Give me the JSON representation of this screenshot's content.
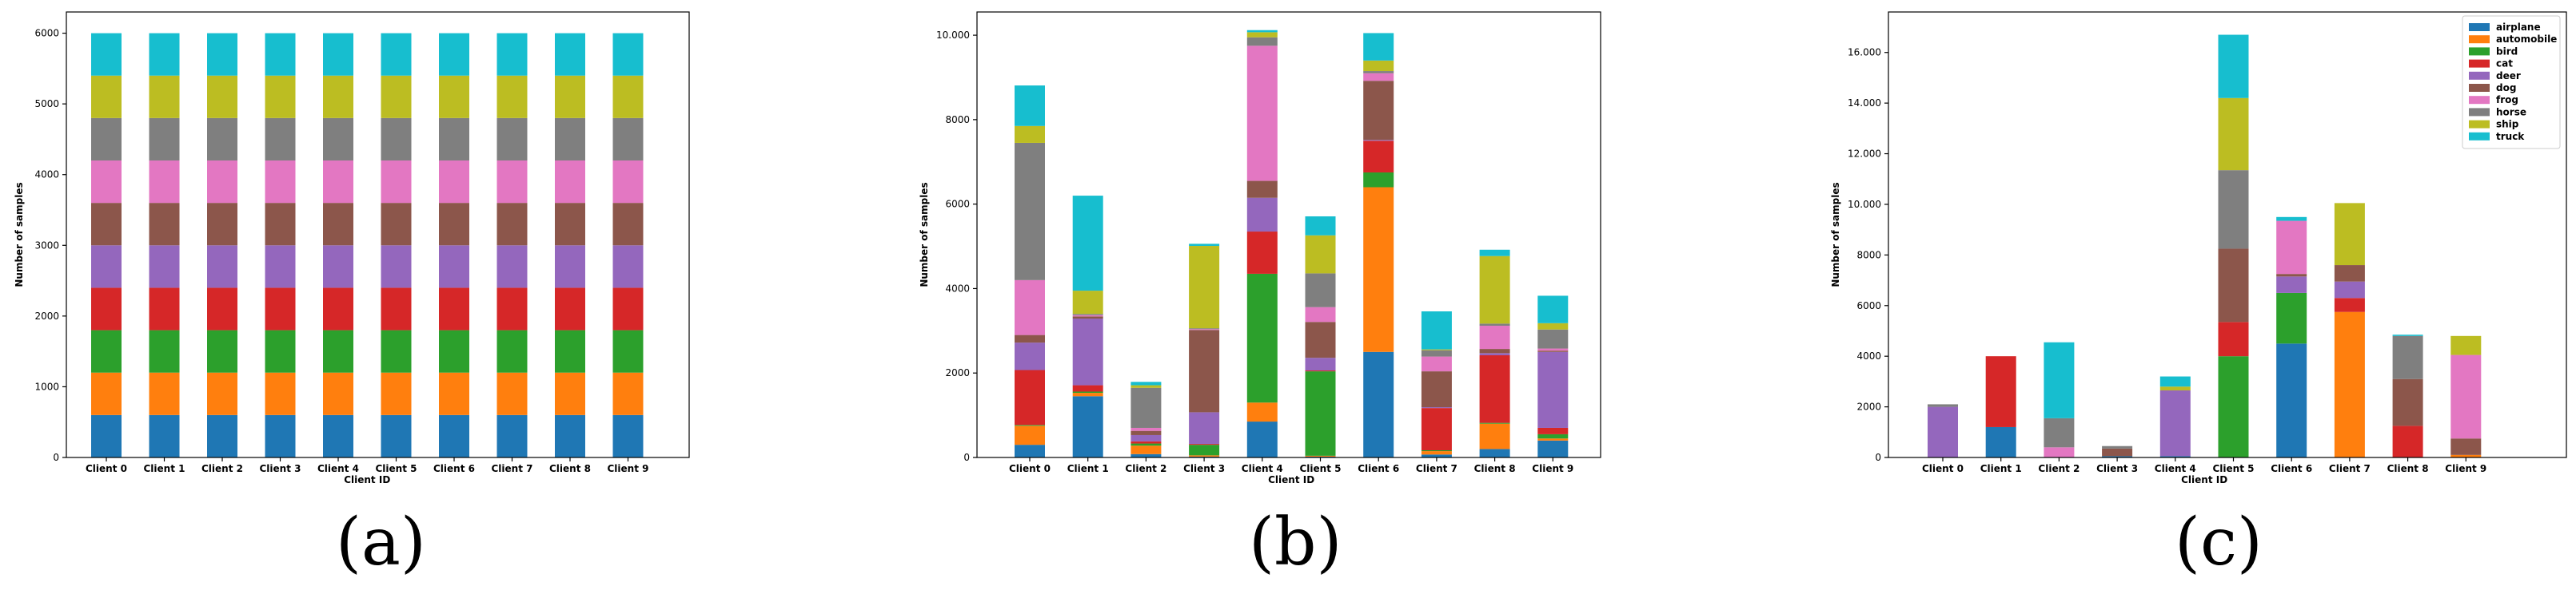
{
  "colors": {
    "airplane": "#1f77b4",
    "automobile": "#ff7f0e",
    "bird": "#2ca02c",
    "cat": "#d62728",
    "deer": "#9467bd",
    "dog": "#8c564b",
    "frog": "#e377c2",
    "horse": "#7f7f7f",
    "ship": "#bcbd22",
    "truck": "#17becf"
  },
  "chart_data": [
    {
      "type": "bar",
      "stacked": true,
      "panel_label": "(a)",
      "title": "",
      "xlabel": "Client ID",
      "ylabel": "Number of samples",
      "categories": [
        "Client 0",
        "Client 1",
        "Client 2",
        "Client 3",
        "Client 4",
        "Client 5",
        "Client 6",
        "Client 7",
        "Client 8",
        "Client 9"
      ],
      "ylim": [
        0,
        6300
      ],
      "yticks": [
        0,
        1000,
        2000,
        3000,
        4000,
        5000,
        6000
      ],
      "ytick_labels": [
        "0",
        "1000",
        "2000",
        "3000",
        "4000",
        "5000",
        "6000"
      ],
      "series": [
        {
          "name": "airplane",
          "values": [
            600,
            600,
            600,
            600,
            600,
            600,
            600,
            600,
            600,
            600
          ]
        },
        {
          "name": "automobile",
          "values": [
            600,
            600,
            600,
            600,
            600,
            600,
            600,
            600,
            600,
            600
          ]
        },
        {
          "name": "bird",
          "values": [
            600,
            600,
            600,
            600,
            600,
            600,
            600,
            600,
            600,
            600
          ]
        },
        {
          "name": "cat",
          "values": [
            600,
            600,
            600,
            600,
            600,
            600,
            600,
            600,
            600,
            600
          ]
        },
        {
          "name": "deer",
          "values": [
            600,
            600,
            600,
            600,
            600,
            600,
            600,
            600,
            600,
            600
          ]
        },
        {
          "name": "dog",
          "values": [
            600,
            600,
            600,
            600,
            600,
            600,
            600,
            600,
            600,
            600
          ]
        },
        {
          "name": "frog",
          "values": [
            600,
            600,
            600,
            600,
            600,
            600,
            600,
            600,
            600,
            600
          ]
        },
        {
          "name": "horse",
          "values": [
            600,
            600,
            600,
            600,
            600,
            600,
            600,
            600,
            600,
            600
          ]
        },
        {
          "name": "ship",
          "values": [
            600,
            600,
            600,
            600,
            600,
            600,
            600,
            600,
            600,
            600
          ]
        },
        {
          "name": "truck",
          "values": [
            600,
            600,
            600,
            600,
            600,
            600,
            600,
            600,
            600,
            600
          ]
        }
      ]
    },
    {
      "type": "bar",
      "stacked": true,
      "panel_label": "(b)",
      "title": "",
      "xlabel": "Client ID",
      "ylabel": "Number of samples",
      "categories": [
        "Client 0",
        "Client 1",
        "Client 2",
        "Client 3",
        "Client 4",
        "Client 5",
        "Client 6",
        "Client 7",
        "Client 8",
        "Client 9"
      ],
      "ylim": [
        0,
        10550
      ],
      "yticks": [
        0,
        2000,
        4000,
        6000,
        8000,
        10000
      ],
      "ytick_labels": [
        "0",
        "2000",
        "4000",
        "6000",
        "8000",
        "10.000"
      ],
      "series": [
        {
          "name": "airplane",
          "values": [
            300,
            1450,
            80,
            20,
            850,
            20,
            2500,
            70,
            200,
            400
          ]
        },
        {
          "name": "automobile",
          "values": [
            450,
            80,
            200,
            30,
            450,
            20,
            3900,
            80,
            600,
            50
          ]
        },
        {
          "name": "bird",
          "values": [
            20,
            30,
            50,
            250,
            3050,
            2000,
            350,
            20,
            20,
            100
          ]
        },
        {
          "name": "cat",
          "values": [
            1300,
            150,
            50,
            20,
            1000,
            20,
            750,
            1000,
            1600,
            150
          ]
        },
        {
          "name": "deer",
          "values": [
            650,
            1580,
            150,
            750,
            800,
            300,
            20,
            20,
            50,
            1800
          ]
        },
        {
          "name": "dog",
          "values": [
            180,
            50,
            100,
            1950,
            400,
            850,
            1400,
            850,
            100,
            30
          ]
        },
        {
          "name": "frog",
          "values": [
            1300,
            30,
            70,
            20,
            3200,
            350,
            180,
            350,
            550,
            50
          ]
        },
        {
          "name": "horse",
          "values": [
            3250,
            30,
            950,
            20,
            200,
            800,
            50,
            150,
            50,
            450
          ]
        },
        {
          "name": "ship",
          "values": [
            400,
            550,
            60,
            1950,
            120,
            900,
            250,
            20,
            1600,
            150
          ]
        },
        {
          "name": "truck",
          "values": [
            960,
            2250,
            80,
            50,
            50,
            450,
            650,
            900,
            150,
            650
          ]
        }
      ]
    },
    {
      "type": "bar",
      "stacked": true,
      "panel_label": "(c)",
      "title": "",
      "xlabel": "Client ID",
      "ylabel": "Number of samples",
      "categories": [
        "Client 0",
        "Client 1",
        "Client 2",
        "Client 3",
        "Client 4",
        "Client 5",
        "Client 6",
        "Client 7",
        "Client 8",
        "Client 9"
      ],
      "ylim": [
        0,
        17600
      ],
      "yticks": [
        0,
        2000,
        4000,
        6000,
        8000,
        10000,
        12000,
        14000,
        16000
      ],
      "ytick_labels": [
        "0",
        "2000",
        "4000",
        "6000",
        "8000",
        "10.000",
        "12.000",
        "14.000",
        "16.000"
      ],
      "legend": {
        "position": "top-right",
        "entries": [
          "airplane",
          "automobile",
          "bird",
          "cat",
          "deer",
          "dog",
          "frog",
          "horse",
          "ship",
          "truck"
        ]
      },
      "series": [
        {
          "name": "airplane",
          "values": [
            0,
            1200,
            0,
            50,
            50,
            0,
            4500,
            0,
            0,
            0
          ]
        },
        {
          "name": "automobile",
          "values": [
            0,
            0,
            0,
            0,
            0,
            0,
            0,
            5750,
            0,
            100
          ]
        },
        {
          "name": "bird",
          "values": [
            0,
            0,
            0,
            0,
            0,
            4000,
            2000,
            0,
            0,
            0
          ]
        },
        {
          "name": "cat",
          "values": [
            0,
            2800,
            0,
            0,
            0,
            1350,
            0,
            550,
            1250,
            0
          ]
        },
        {
          "name": "deer",
          "values": [
            2000,
            0,
            0,
            0,
            2600,
            0,
            650,
            650,
            0,
            0
          ]
        },
        {
          "name": "dog",
          "values": [
            0,
            0,
            0,
            300,
            0,
            2900,
            100,
            650,
            1850,
            650
          ]
        },
        {
          "name": "frog",
          "values": [
            0,
            0,
            400,
            0,
            0,
            0,
            2100,
            0,
            0,
            3300
          ]
        },
        {
          "name": "horse",
          "values": [
            100,
            0,
            1150,
            100,
            0,
            3100,
            0,
            0,
            1700,
            0
          ]
        },
        {
          "name": "ship",
          "values": [
            0,
            0,
            0,
            0,
            150,
            2850,
            0,
            2450,
            0,
            750
          ]
        },
        {
          "name": "truck",
          "values": [
            0,
            0,
            3000,
            0,
            400,
            2500,
            150,
            0,
            50,
            0
          ]
        }
      ]
    }
  ]
}
